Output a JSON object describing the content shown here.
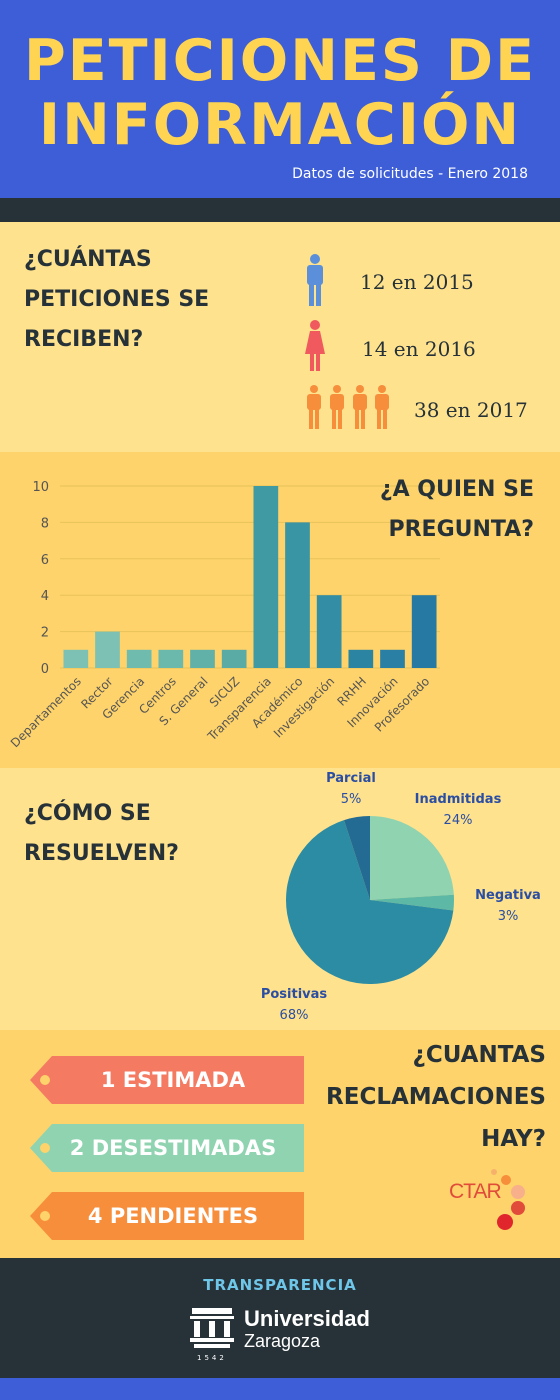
{
  "header": {
    "title_line1": "PETICIONES DE",
    "title_line2": "INFORMACIÓN",
    "subtitle": "Datos de solicitudes - Enero 2018"
  },
  "section_received": {
    "question": "¿CUÁNTAS PETICIONES SE RECIBEN?",
    "stats": [
      "12 en 2015",
      "14 en 2016",
      "38 en 2017"
    ]
  },
  "section_who": {
    "question": "¿A QUIEN SE PREGUNTA?"
  },
  "section_resolve": {
    "question": "¿CÓMO SE RESUELVEN?"
  },
  "section_claims": {
    "question": "¿CUANTAS RECLAMACIONES HAY?",
    "items": [
      "1 ESTIMADA",
      "2 DESESTIMADAS",
      "4 PENDIENTES"
    ],
    "logo_text": "CTAR"
  },
  "footer": {
    "label": "TRANSPARENCIA",
    "university_line1": "Universidad",
    "university_line2": "Zaragoza",
    "year": "1542"
  },
  "colors": {
    "header_bg": "#3d5ed6",
    "title": "#ffd452",
    "light_yellow": "#fee28e",
    "dark_yellow": "#fed36b",
    "dark": "#263238",
    "person_2015": "#5b8fd9",
    "person_2016": "#f0595e",
    "person_2017": "#f68e3c",
    "ribbon_estimada": "#f47a62",
    "ribbon_desestimadas": "#8fd3b0",
    "ribbon_pendientes": "#f68e3c"
  },
  "chart_data": [
    {
      "type": "bar",
      "categories": [
        "Departamentos",
        "Rector",
        "Gerencia",
        "Centros",
        "S. General",
        "SICUZ",
        "Transparencia",
        "Académico",
        "Investigación",
        "RRHH",
        "Innovación",
        "Profesorado"
      ],
      "values": [
        1,
        2,
        1,
        1,
        1,
        1,
        10,
        8,
        4,
        1,
        1,
        4
      ],
      "title": "¿A QUIEN SE PREGUNTA?",
      "yticks": [
        0,
        2,
        4,
        6,
        8,
        10
      ],
      "ylim": [
        0,
        10
      ],
      "grid": true,
      "colors": [
        "#7cc1b4",
        "#7cc1b4",
        "#6fbcae",
        "#6bb8ad",
        "#62b1a8",
        "#5aaaa5",
        "#3f9aa4",
        "#3994a4",
        "#328da5",
        "#2c84a3",
        "#2a7fa4",
        "#2679a2"
      ]
    },
    {
      "type": "pie",
      "title": "¿CÓMO SE RESUELVEN?",
      "slices": [
        {
          "label": "Inadmitidas",
          "value": 24,
          "display": "24%",
          "color": "#8fd3b0"
        },
        {
          "label": "Negativa",
          "value": 3,
          "display": "3%",
          "color": "#5db8a5"
        },
        {
          "label": "Positivas",
          "value": 68,
          "display": "68%",
          "color": "#2c8ca4"
        },
        {
          "label": "Parcial",
          "value": 5,
          "display": "5%",
          "color": "#236b92"
        }
      ]
    }
  ]
}
